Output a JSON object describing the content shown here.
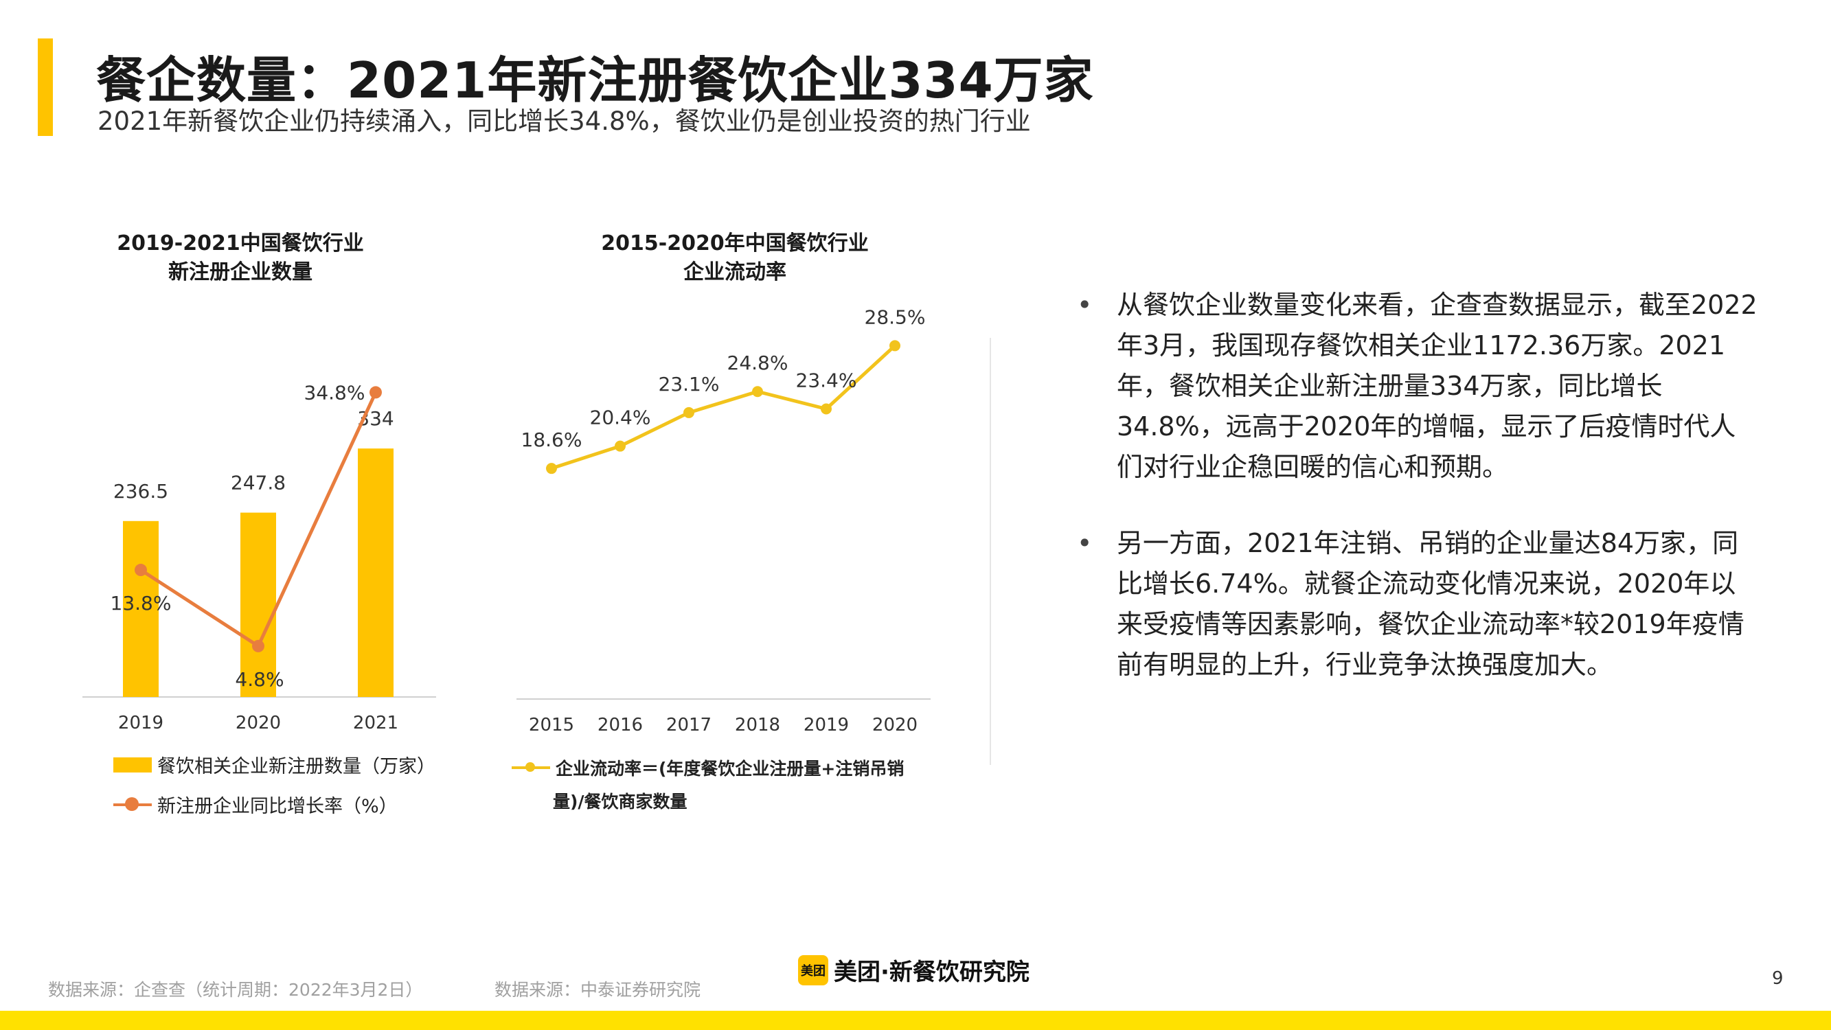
{
  "header": {
    "title": "餐企数量：2021年新注册餐饮企业334万家",
    "subtitle": "2021年新餐饮企业仍持续涌入，同比增长34.8%，餐饮业仍是创业投资的热门行业"
  },
  "colors": {
    "accent": "#FFC300",
    "orange": "#E87D3E",
    "line_yellow": "#F2C31C",
    "footer_bar": "#FFE100"
  },
  "chart_data": [
    {
      "type": "bar",
      "title": "2019-2021中国餐饮行业\n新注册企业数量",
      "title_lines": [
        "2019-2021中国餐饮行业",
        "新注册企业数量"
      ],
      "categories": [
        "2019",
        "2020",
        "2021"
      ],
      "series": [
        {
          "name": "餐饮相关企业新注册数量（万家）",
          "kind": "bar",
          "values": [
            236.5,
            247.8,
            334
          ],
          "labels": [
            "236.5",
            "247.8",
            "334"
          ],
          "color": "#FFC300",
          "ylim": [
            0,
            420
          ]
        },
        {
          "name": "新注册企业同比增长率（%）",
          "kind": "line",
          "values": [
            13.8,
            4.8,
            34.8
          ],
          "labels": [
            "13.8%",
            "4.8%",
            "34.8%"
          ],
          "color": "#E87D3E",
          "ylim": [
            0,
            38
          ]
        }
      ],
      "legend": "bottom"
    },
    {
      "type": "line",
      "title": "2015-2020年中国餐饮行业\n企业流动率",
      "title_lines": [
        "2015-2020年中国餐饮行业",
        "企业流动率"
      ],
      "x": [
        "2015",
        "2016",
        "2017",
        "2018",
        "2019",
        "2020"
      ],
      "series": [
        {
          "name": "企业流动率＝(年度餐饮企业注册量+注销吊销量)/餐饮商家数量",
          "values": [
            18.6,
            20.4,
            23.1,
            24.8,
            23.4,
            28.5
          ],
          "labels": [
            "18.6%",
            "20.4%",
            "23.1%",
            "24.8%",
            "23.4%",
            "28.5%"
          ],
          "color": "#F2C31C"
        }
      ],
      "ylim": [
        0,
        36
      ],
      "legend": "bottom"
    }
  ],
  "legends": {
    "c1_bar": "餐饮相关企业新注册数量（万家）",
    "c1_line": "新注册企业同比增长率（%）",
    "c2_line_part1": "企业流动率＝(年度餐饮企业注册量+注销吊销",
    "c2_line_part2": "量)/餐饮商家数量"
  },
  "bullets": [
    "从餐饮企业数量变化来看，企查查数据显示，截至2022年3月，我国现存餐饮相关企业1172.36万家。2021年，餐饮相关企业新注册量334万家，同比增长34.8%，远高于2020年的增幅，显示了后疫情时代人们对行业企稳回暖的信心和预期。",
    "另一方面，2021年注销、吊销的企业量达84万家，同比增长6.74%。就餐企流动变化情况来说，2020年以来受疫情等因素影响，餐饮企业流动率*较2019年疫情前有明显的上升，行业竞争汰换强度加大。"
  ],
  "bullet_marker": "•",
  "footer": {
    "source_left": "数据来源：企查查（统计周期：2022年3月2日）",
    "source_right": "数据来源：中泰证券研究院",
    "brand_logo_text": "美团",
    "brand_text": "美团·新餐饮研究院",
    "page_number": "9"
  }
}
